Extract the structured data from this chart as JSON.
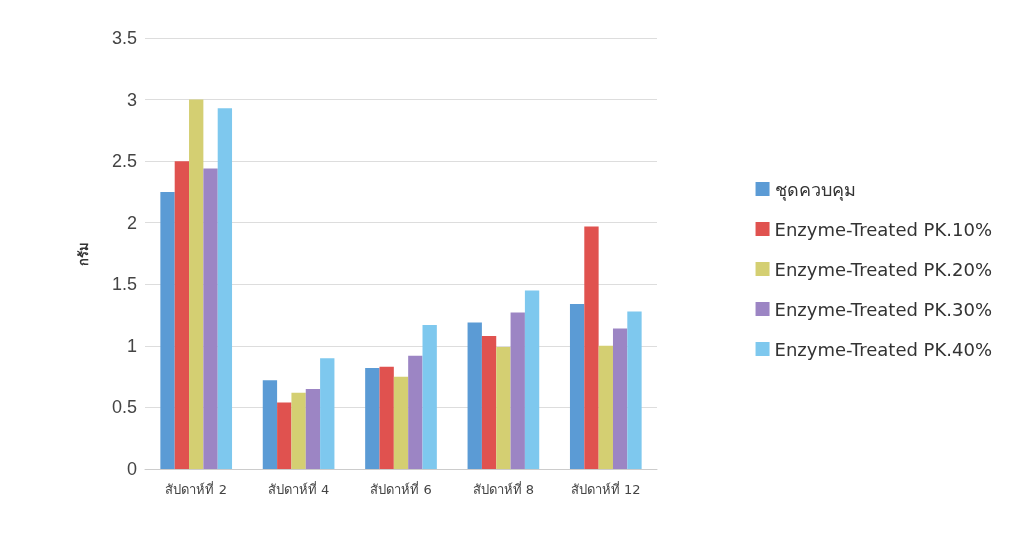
{
  "chart_data": {
    "type": "bar",
    "ylabel": "กรัม",
    "categories": [
      "สัปดาห์ที่ 2",
      "สัปดาห์ที่ 4",
      "สัปดาห์ที่ 6",
      "สัปดาห์ที่ 8",
      "สัปดาห์ที่ 12"
    ],
    "series": [
      {
        "name": "ชุดควบคุม",
        "color": "#5b9bd5",
        "values": [
          2.25,
          0.72,
          0.82,
          1.19,
          1.34
        ]
      },
      {
        "name": "Enzyme-Treated PK.10%",
        "color": "#e0524f",
        "values": [
          2.5,
          0.54,
          0.83,
          1.08,
          1.97
        ]
      },
      {
        "name": "Enzyme-Treated PK.20%",
        "color": "#d4cf72",
        "values": [
          3.0,
          0.62,
          0.75,
          0.99,
          1.0
        ]
      },
      {
        "name": "Enzyme-Treated PK.30%",
        "color": "#9c85c4",
        "values": [
          2.44,
          0.65,
          0.92,
          1.27,
          1.14
        ]
      },
      {
        "name": "Enzyme-Treated PK.40%",
        "color": "#7ec8ee",
        "values": [
          2.93,
          0.9,
          1.17,
          1.45,
          1.28
        ]
      }
    ],
    "ylim": [
      0,
      3.5
    ],
    "yticks": [
      0,
      0.5,
      1,
      1.5,
      2,
      2.5,
      3,
      3.5
    ],
    "grid": "y",
    "legend": "right"
  }
}
